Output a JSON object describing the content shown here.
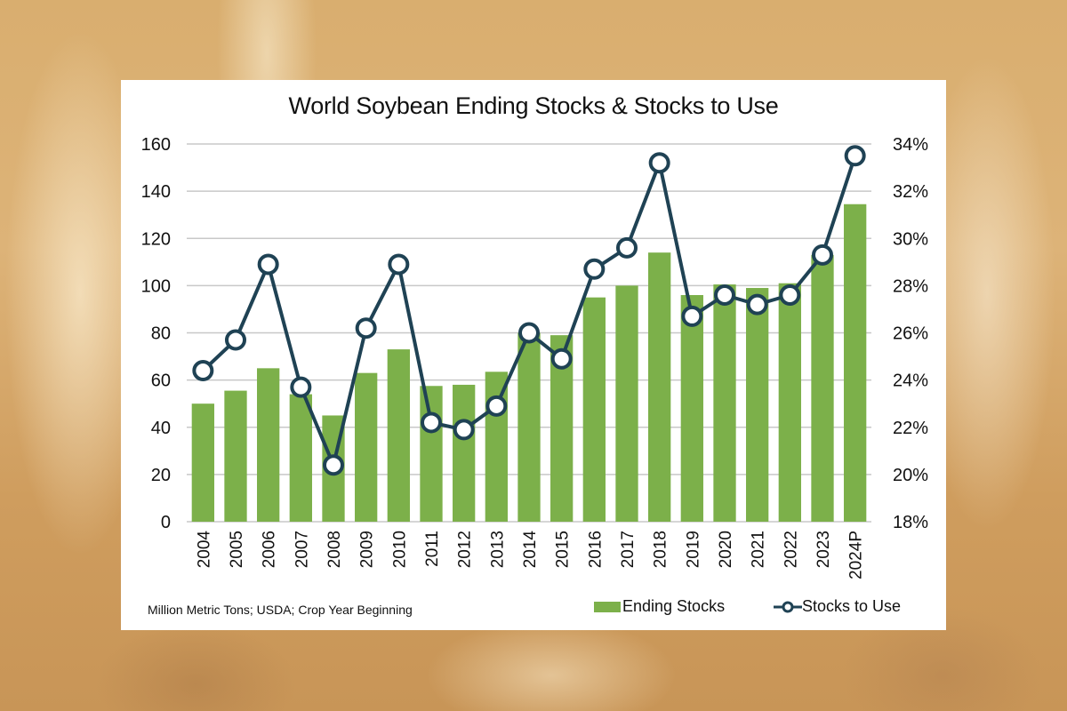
{
  "chart_data": {
    "type": "bar+line",
    "title": "World Soybean Ending Stocks & Stocks to Use",
    "footnote": "Million Metric Tons; USDA; Crop Year Beginning",
    "categories": [
      "2004",
      "2005",
      "2006",
      "2007",
      "2008",
      "2009",
      "2010",
      "2011",
      "2012",
      "2013",
      "2014",
      "2015",
      "2016",
      "2017",
      "2018",
      "2019",
      "2020",
      "2021",
      "2022",
      "2023",
      "2024P"
    ],
    "series": [
      {
        "name": "Ending Stocks",
        "type": "bar",
        "axis": "left",
        "color": "#7cb04a",
        "values": [
          50,
          55.5,
          65,
          54,
          45,
          63,
          73,
          57.5,
          58,
          63.5,
          80,
          79,
          95,
          100,
          114,
          96,
          100.5,
          99,
          101,
          113,
          134.5
        ]
      },
      {
        "name": "Stocks to Use",
        "type": "line",
        "axis": "right",
        "color": "#1f4254",
        "values": [
          24.4,
          25.7,
          28.9,
          23.7,
          20.4,
          26.2,
          28.9,
          22.2,
          21.9,
          22.9,
          26.0,
          24.9,
          28.7,
          29.6,
          33.2,
          26.7,
          27.6,
          27.2,
          27.6,
          29.3,
          33.5
        ]
      }
    ],
    "xlabel": "",
    "ylabel": "Million Metric Tons",
    "ylim": [
      0,
      160
    ],
    "yticks": [
      "0",
      "20",
      "40",
      "60",
      "80",
      "100",
      "120",
      "140",
      "160"
    ],
    "y2lim": [
      18,
      34
    ],
    "y2ticks": [
      "18%",
      "20%",
      "22%",
      "24%",
      "26%",
      "28%",
      "30%",
      "32%",
      "34%"
    ],
    "grid": true,
    "legend_position": "bottom-right"
  },
  "legend": {
    "bar_label": "Ending Stocks",
    "line_label": "Stocks to Use"
  }
}
